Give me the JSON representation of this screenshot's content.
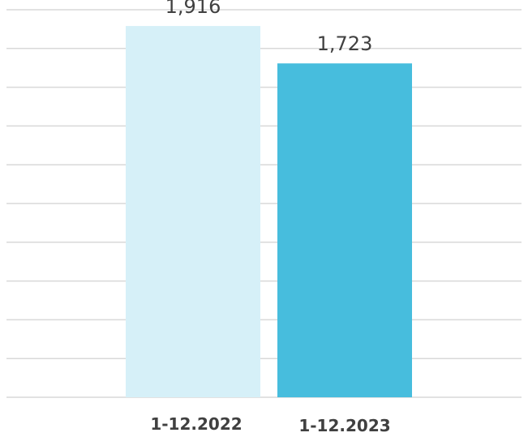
{
  "chart_data": {
    "type": "bar",
    "categories": [
      "1-12.2022",
      "1-12.2023"
    ],
    "values": [
      1916,
      1723
    ],
    "data_labels": [
      "1,916",
      "1,723"
    ],
    "title": "",
    "xlabel": "",
    "ylabel": "",
    "ylim": [
      0,
      2000
    ],
    "grid": true,
    "legend": "none",
    "bar_colors": [
      "#d6f0f8",
      "#47bddd"
    ],
    "gridline_color": "#d9d9d9",
    "label_color": "#404040"
  }
}
